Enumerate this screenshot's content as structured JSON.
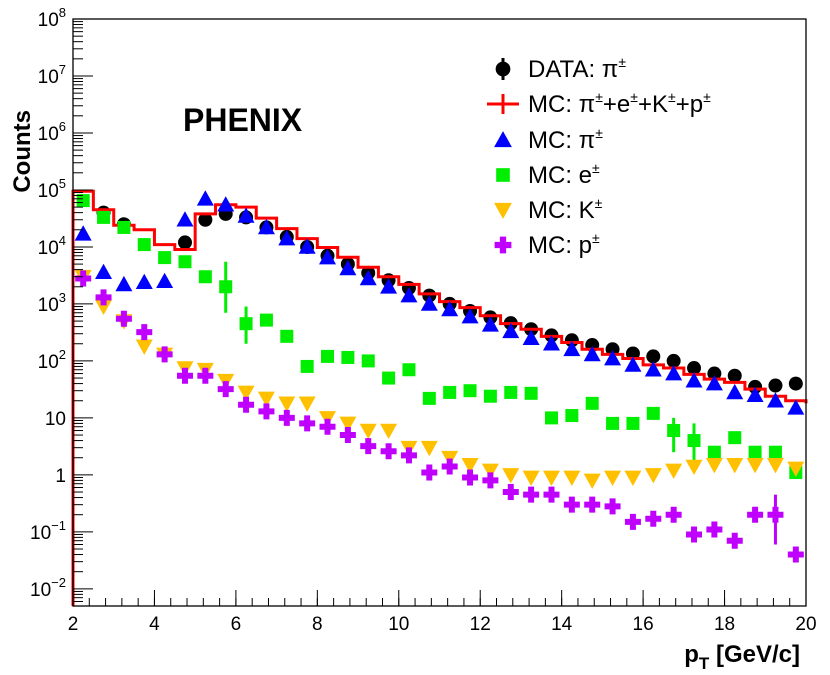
{
  "chart_data": {
    "type": "scatter",
    "title": "",
    "annotation": "PHENIX",
    "xlabel": "p_T [GeV/c]",
    "xlabel_main": "p",
    "xlabel_sub": "T",
    "xlabel_unit": " [GeV/c]",
    "ylabel": "Counts",
    "xlim": [
      2,
      20
    ],
    "ylim": [
      0.005,
      100000000
    ],
    "yscale": "log",
    "xticks": [
      2,
      4,
      6,
      8,
      10,
      12,
      14,
      16,
      18,
      20
    ],
    "yticks": [
      {
        "value": 0.01,
        "base": "10",
        "exp": "−2"
      },
      {
        "value": 0.1,
        "base": "10",
        "exp": "−1"
      },
      {
        "value": 1,
        "base": "1",
        "exp": ""
      },
      {
        "value": 10,
        "base": "10",
        "exp": ""
      },
      {
        "value": 100,
        "base": "10",
        "exp": "2"
      },
      {
        "value": 1000,
        "base": "10",
        "exp": "3"
      },
      {
        "value": 10000,
        "base": "10",
        "exp": "4"
      },
      {
        "value": 100000,
        "base": "10",
        "exp": "5"
      },
      {
        "value": 1000000,
        "base": "10",
        "exp": "6"
      },
      {
        "value": 10000000,
        "base": "10",
        "exp": "7"
      },
      {
        "value": 100000000,
        "base": "10",
        "exp": "8"
      }
    ],
    "legend_position": "top-right",
    "series": [
      {
        "name": "DATA: π±",
        "label_main": "DATA: π",
        "label_sup": "±",
        "marker": "circle",
        "color": "#000000",
        "x": [
          2.75,
          3.25,
          4.75,
          5.25,
          5.75,
          6.25,
          6.75,
          7.25,
          7.75,
          8.25,
          8.75,
          9.25,
          9.75,
          10.25,
          10.75,
          11.25,
          11.75,
          12.25,
          12.75,
          13.25,
          13.75,
          14.25,
          14.75,
          15.25,
          15.75,
          16.25,
          16.75,
          17.25,
          17.75,
          18.25,
          18.75,
          19.25,
          19.75
        ],
        "y": [
          40000,
          25000,
          12000,
          30000,
          38000,
          33000,
          22000,
          15000,
          10000,
          7000,
          5000,
          3500,
          2600,
          1900,
          1400,
          1000,
          750,
          580,
          460,
          360,
          280,
          230,
          190,
          160,
          135,
          120,
          100,
          75,
          60,
          55,
          35,
          37,
          40
        ]
      },
      {
        "name": "MC: π±+e±+K±+p±",
        "label_main": "MC: π",
        "label_parts": [
          "±",
          "+e",
          "±",
          "+K",
          "±",
          "+p",
          "±"
        ],
        "marker": "step",
        "color": "#ff0000",
        "edges": [
          2,
          2.5,
          3,
          3.5,
          4,
          4.5,
          5,
          5.5,
          6,
          6.5,
          7,
          7.5,
          8,
          8.5,
          9,
          9.5,
          10,
          10.5,
          11,
          11.5,
          12,
          12.5,
          13,
          13.5,
          14,
          14.5,
          15,
          15.5,
          16,
          16.5,
          17,
          17.5,
          18,
          18.5,
          19,
          19.5,
          20
        ],
        "values": [
          95000,
          45000,
          24000,
          20000,
          11000,
          9000,
          38000,
          55000,
          50000,
          32000,
          21000,
          14000,
          9800,
          6600,
          4400,
          3000,
          2200,
          1500,
          1100,
          860,
          620,
          450,
          360,
          270,
          210,
          160,
          130,
          110,
          85,
          75,
          58,
          48,
          42,
          32,
          24,
          20,
          18
        ]
      },
      {
        "name": "MC: π±",
        "label_main": "MC: π",
        "label_sup": "±",
        "marker": "triangle-up",
        "color": "#0000ff",
        "x": [
          2.25,
          2.75,
          3.25,
          3.75,
          4.25,
          4.75,
          5.25,
          5.75,
          6.25,
          6.75,
          7.25,
          7.75,
          8.25,
          8.75,
          9.25,
          9.75,
          10.25,
          10.75,
          11.25,
          11.75,
          12.25,
          12.75,
          13.25,
          13.75,
          14.25,
          14.75,
          15.25,
          15.75,
          16.25,
          16.75,
          17.25,
          17.75,
          18.25,
          18.75,
          19.25,
          19.75
        ],
        "y": [
          17000,
          3600,
          2200,
          2400,
          2500,
          30000,
          70000,
          55000,
          35000,
          22000,
          14000,
          10000,
          6500,
          4200,
          2800,
          2000,
          1400,
          1000,
          800,
          600,
          430,
          330,
          250,
          200,
          160,
          130,
          110,
          85,
          70,
          60,
          45,
          40,
          28,
          25,
          20,
          15
        ]
      },
      {
        "name": "MC: e±",
        "label_main": "MC: e",
        "label_sup": "±",
        "marker": "square",
        "color": "#00ee00",
        "x": [
          2.25,
          2.75,
          3.25,
          3.75,
          4.25,
          4.75,
          5.25,
          5.75,
          6.25,
          6.75,
          7.25,
          7.75,
          8.25,
          8.75,
          9.25,
          9.75,
          10.25,
          10.75,
          11.25,
          11.75,
          12.25,
          12.75,
          13.25,
          13.75,
          14.25,
          14.75,
          15.25,
          15.75,
          16.25,
          16.75,
          17.25,
          17.75,
          18.25,
          18.75,
          19.25,
          19.75
        ],
        "y": [
          65000,
          33000,
          22000,
          11000,
          6500,
          5500,
          3000,
          2000,
          450,
          520,
          270,
          80,
          120,
          115,
          100,
          50,
          70,
          22,
          28,
          30,
          24,
          28,
          27,
          10,
          11,
          18,
          8,
          8,
          12,
          6,
          4,
          2.5,
          4.5,
          2.5,
          2.5,
          1.1
        ],
        "y_low": [
          null,
          null,
          null,
          null,
          null,
          null,
          null,
          700,
          200,
          null,
          null,
          null,
          null,
          null,
          null,
          null,
          null,
          null,
          null,
          null,
          null,
          null,
          null,
          null,
          null,
          null,
          null,
          null,
          null,
          2.5,
          1.5,
          null,
          null,
          null,
          null,
          null
        ],
        "y_high": [
          null,
          null,
          null,
          null,
          null,
          null,
          null,
          5500,
          900,
          null,
          null,
          null,
          null,
          null,
          null,
          null,
          null,
          null,
          null,
          null,
          null,
          null,
          null,
          null,
          null,
          null,
          null,
          null,
          null,
          10,
          8,
          null,
          null,
          null,
          null,
          null
        ]
      },
      {
        "name": "MC: K±",
        "label_main": "MC: K",
        "label_sup": "±",
        "marker": "triangle-down",
        "color": "#ffc000",
        "x": [
          2.25,
          2.75,
          3.25,
          3.75,
          4.25,
          4.75,
          5.25,
          5.75,
          6.25,
          6.75,
          7.25,
          7.75,
          8.25,
          8.75,
          9.25,
          9.75,
          10.25,
          10.75,
          11.25,
          11.75,
          12.25,
          12.75,
          13.25,
          13.75,
          14.25,
          14.75,
          15.25,
          15.75,
          16.25,
          16.75,
          17.25,
          17.75,
          18.25,
          18.75,
          19.25,
          19.75
        ],
        "y": [
          3000,
          900,
          500,
          180,
          130,
          75,
          70,
          45,
          28,
          22,
          18,
          18,
          10,
          8,
          6,
          6,
          3,
          3,
          2,
          1.5,
          1.2,
          1,
          0.9,
          0.9,
          0.9,
          0.8,
          0.9,
          0.9,
          1,
          1.2,
          1.4,
          1.5,
          1.5,
          1.5,
          1.5,
          1.3
        ]
      },
      {
        "name": "MC: p±",
        "label_main": "MC: p",
        "label_sup": "±",
        "marker": "cross",
        "color": "#c000ff",
        "x": [
          2.25,
          2.75,
          3.25,
          3.75,
          4.25,
          4.75,
          5.25,
          5.75,
          6.25,
          6.75,
          7.25,
          7.75,
          8.25,
          8.75,
          9.25,
          9.75,
          10.25,
          10.75,
          11.25,
          11.75,
          12.25,
          12.75,
          13.25,
          13.75,
          14.25,
          14.75,
          15.25,
          15.75,
          16.25,
          16.75,
          17.25,
          17.75,
          18.25,
          18.75,
          19.25,
          19.75
        ],
        "y": [
          2800,
          1300,
          550,
          320,
          130,
          55,
          55,
          32,
          17,
          13,
          10,
          8,
          7,
          5,
          3.2,
          2.6,
          2.2,
          1.1,
          1.4,
          0.9,
          0.8,
          0.5,
          0.45,
          0.45,
          0.3,
          0.3,
          0.28,
          0.15,
          0.17,
          0.2,
          0.09,
          0.11,
          0.07,
          0.2,
          0.2,
          0.04
        ],
        "y_low": [
          null,
          null,
          null,
          null,
          null,
          null,
          null,
          null,
          null,
          null,
          null,
          null,
          null,
          null,
          null,
          null,
          null,
          null,
          null,
          null,
          null,
          null,
          null,
          null,
          null,
          null,
          null,
          null,
          null,
          null,
          null,
          null,
          null,
          null,
          0.06,
          null
        ],
        "y_high": [
          null,
          null,
          null,
          null,
          null,
          null,
          null,
          null,
          null,
          null,
          null,
          null,
          null,
          null,
          null,
          null,
          null,
          null,
          null,
          null,
          null,
          null,
          null,
          null,
          null,
          null,
          null,
          null,
          null,
          null,
          null,
          null,
          null,
          null,
          0.45,
          null
        ]
      }
    ]
  }
}
